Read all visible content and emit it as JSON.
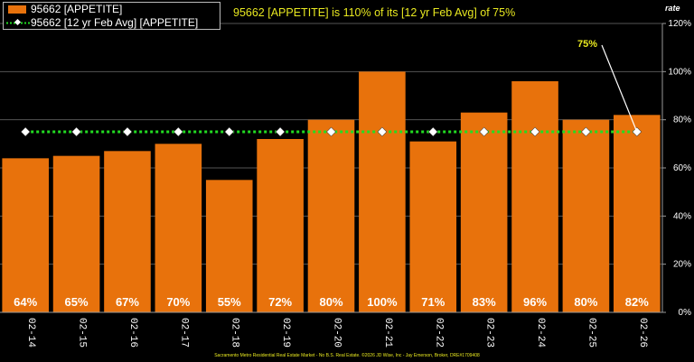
{
  "legend": {
    "bar_label": "95662 [APPETITE]",
    "line_label": "95662 [12 yr Feb Avg] [APPETITE]"
  },
  "headline": "95662 [APPETITE] is 110% of its [12 yr Feb Avg] of 75%",
  "rate_label": "rate",
  "footer": "Sacramento Metro Residential Real Estate Market - No B.S. Real Estate. ©2026 JD Wise, Inc - Jay Emerson, Broker, DRE#1709408",
  "colors": {
    "bar": "#e8720c",
    "avg_line": "#22dd22",
    "avg_marker": "#ffffff",
    "text_highlight": "#e8e820",
    "background": "#000000",
    "grid": "#555555"
  },
  "chart_data": {
    "type": "bar",
    "categories": [
      "02-14",
      "02-15",
      "02-16",
      "02-17",
      "02-18",
      "02-19",
      "02-20",
      "02-21",
      "02-22",
      "02-23",
      "02-24",
      "02-25",
      "02-26"
    ],
    "series": [
      {
        "name": "95662 [APPETITE]",
        "type": "bar",
        "values": [
          64,
          65,
          67,
          70,
          55,
          72,
          80,
          100,
          71,
          83,
          96,
          80,
          82
        ]
      },
      {
        "name": "95662 [12 yr Feb Avg] [APPETITE]",
        "type": "line",
        "values": [
          75,
          75,
          75,
          75,
          75,
          75,
          75,
          75,
          75,
          75,
          75,
          75,
          75
        ]
      }
    ],
    "data_labels": [
      "64%",
      "65%",
      "67%",
      "70%",
      "55%",
      "72%",
      "80%",
      "100%",
      "71%",
      "83%",
      "96%",
      "80%",
      "82%"
    ],
    "ylim": [
      0,
      120
    ],
    "yticks": [
      "0%",
      "20%",
      "40%",
      "60%",
      "80%",
      "100%",
      "120%"
    ],
    "ytick_values": [
      0,
      20,
      40,
      60,
      80,
      100,
      120
    ],
    "y_axis_side": "right",
    "annotation": "75%",
    "grid": true,
    "legend_position": "top-left"
  }
}
